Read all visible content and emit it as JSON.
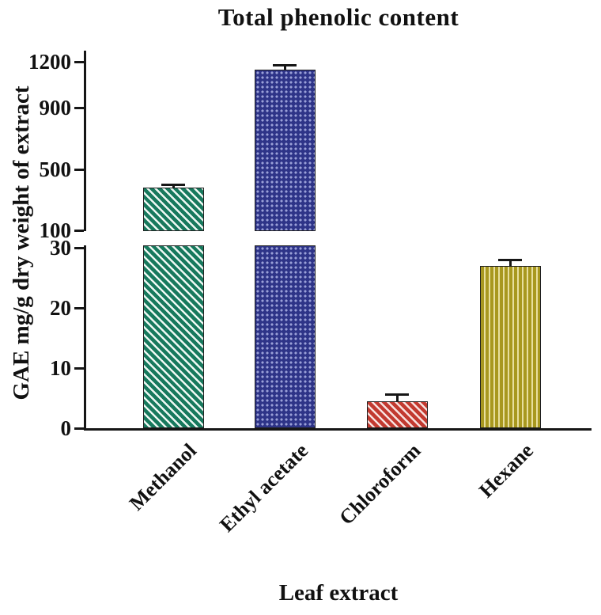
{
  "chart_data": {
    "type": "bar",
    "title": "Total phenolic content",
    "xlabel": "Leaf extract",
    "ylabel": "GAE mg/g dry weight of extract",
    "categories": [
      "Methanol",
      "Ethyl acetate",
      "Chloroform",
      "Hexane"
    ],
    "series": [
      {
        "name": "Total phenolic content",
        "values": [
          380,
          1150,
          4.5,
          27
        ],
        "errors": [
          20,
          30,
          1.2,
          1
        ]
      }
    ],
    "bar_styles": [
      {
        "pattern": "diagonal",
        "color": "#17795d",
        "accent": "#eef8f3"
      },
      {
        "pattern": "dots",
        "color": "#2e3488",
        "accent": "#9aa0d8"
      },
      {
        "pattern": "diagonal",
        "color": "#c23a30",
        "accent": "#f8e2df"
      },
      {
        "pattern": "vertical",
        "color": "#a8981f",
        "accent": "#e8df9e"
      }
    ],
    "axis": {
      "broken": true,
      "lower_ticks": [
        0,
        10,
        20,
        30
      ],
      "upper_ticks": [
        100,
        500,
        900,
        1200
      ],
      "lower_range": [
        0,
        30
      ],
      "upper_range": [
        100,
        1200
      ],
      "grid": false,
      "color": "#161616"
    }
  }
}
